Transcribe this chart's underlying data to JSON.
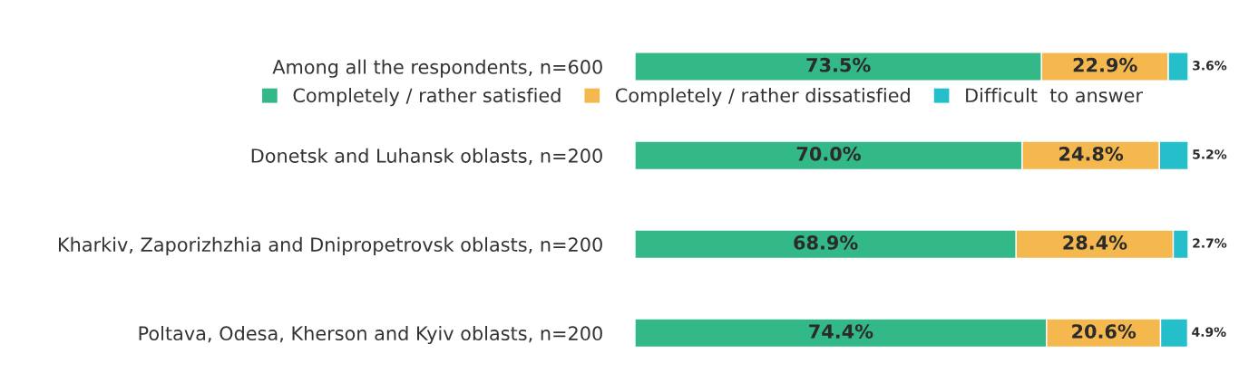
{
  "chart_data": {
    "type": "bar",
    "orientation": "horizontal",
    "stacked": true,
    "categories": [
      "Among all the respondents, n=600",
      "Donetsk and Luhansk oblasts, n=200",
      "Kharkiv, Zaporizhzhia and Dnipropetrovsk oblasts, n=200",
      "Poltava, Odesa, Kherson and Kyiv oblasts, n=200"
    ],
    "series": [
      {
        "name": "Completely / rather satisfied",
        "color": "#33b887",
        "values": [
          73.5,
          70.0,
          68.9,
          74.4
        ],
        "value_labels": [
          "73.5%",
          "70.0%",
          "68.9%",
          "74.4%"
        ]
      },
      {
        "name": "Completely / rather dissatisfied",
        "color": "#f5b84f",
        "values": [
          22.9,
          24.8,
          28.4,
          20.6
        ],
        "value_labels": [
          "22.9%",
          "24.8%",
          "28.4%",
          "20.6%"
        ]
      },
      {
        "name": "Difficult  to answer",
        "color": "#25bfcc",
        "values": [
          3.6,
          5.2,
          2.7,
          4.9
        ],
        "value_labels": [
          "3.6%",
          "5.2%",
          "2.7%",
          "4.9%"
        ]
      }
    ],
    "legend": "top"
  }
}
